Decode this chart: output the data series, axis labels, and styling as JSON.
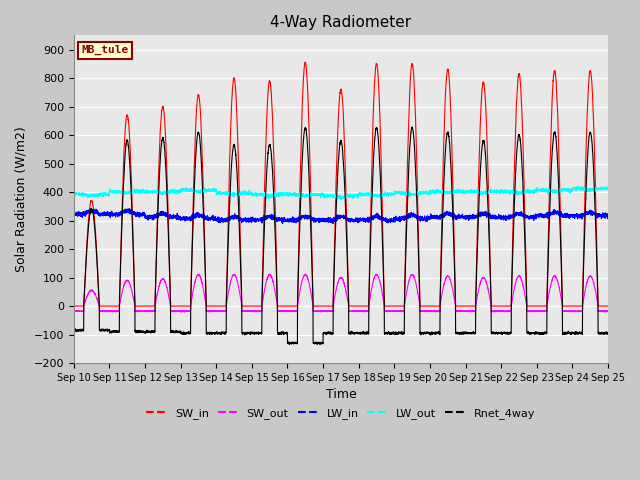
{
  "title": "4-Way Radiometer",
  "xlabel": "Time",
  "ylabel": "Solar Radiation (W/m2)",
  "ylim": [
    -200,
    950
  ],
  "yticks": [
    -200,
    -100,
    0,
    100,
    200,
    300,
    400,
    500,
    600,
    700,
    800,
    900
  ],
  "x_tick_labels": [
    "Sep 10",
    "Sep 11",
    "Sep 12",
    "Sep 13",
    "Sep 14",
    "Sep 15",
    "Sep 16",
    "Sep 17",
    "Sep 18",
    "Sep 19",
    "Sep 20",
    "Sep 21",
    "Sep 22",
    "Sep 23",
    "Sep 24",
    "Sep 25"
  ],
  "station_label": "MB_tule",
  "legend_entries": [
    "SW_in",
    "SW_out",
    "LW_in",
    "LW_out",
    "Rnet_4way"
  ],
  "line_colors": [
    "#ff0000",
    "#ff00ff",
    "#0000ff",
    "#00ffff",
    "#000000"
  ],
  "fig_facecolor": "#c8c8c8",
  "ax_facecolor": "#e8e8e8",
  "n_days": 15,
  "points_per_day": 288,
  "SW_in_peak": [
    370,
    670,
    700,
    740,
    800,
    790,
    855,
    760,
    850,
    850,
    830,
    785,
    815,
    825,
    825
  ],
  "SW_out_peak": [
    55,
    90,
    95,
    110,
    110,
    110,
    110,
    100,
    110,
    110,
    105,
    100,
    105,
    105,
    105
  ],
  "LW_in_base": [
    322,
    322,
    312,
    307,
    302,
    302,
    302,
    302,
    302,
    307,
    312,
    312,
    312,
    317,
    317
  ],
  "LW_out_base": [
    392,
    402,
    402,
    407,
    397,
    392,
    392,
    387,
    392,
    397,
    402,
    402,
    402,
    407,
    412
  ],
  "Rnet_peak": [
    340,
    580,
    590,
    610,
    565,
    565,
    625,
    580,
    625,
    625,
    610,
    580,
    600,
    610,
    610
  ],
  "Rnet_night": [
    -85,
    -90,
    -90,
    -95,
    -95,
    -95,
    -130,
    -95,
    -95,
    -95,
    -95,
    -95,
    -95,
    -95,
    -95
  ],
  "SW_out_night": [
    -18,
    -18,
    -18,
    -18,
    -18,
    -18,
    -18,
    -18,
    -18,
    -18,
    -18,
    -18,
    -18,
    -18,
    -18
  ]
}
